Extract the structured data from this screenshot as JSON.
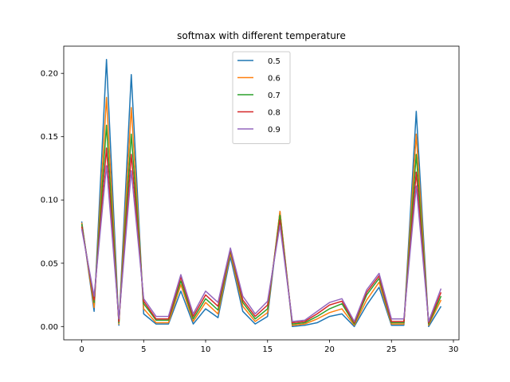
{
  "chart_data": {
    "type": "line",
    "title": "softmax with different temperature",
    "xlabel": "",
    "ylabel": "",
    "xlim": [
      -1.45,
      30.45
    ],
    "ylim": [
      -0.0105,
      0.2215
    ],
    "xticks": [
      0,
      5,
      10,
      15,
      20,
      25,
      30
    ],
    "xtick_labels": [
      "0",
      "5",
      "10",
      "15",
      "20",
      "25",
      "30"
    ],
    "yticks": [
      0.0,
      0.05,
      0.1,
      0.15,
      0.2
    ],
    "ytick_labels": [
      "0.00",
      "0.05",
      "0.10",
      "0.15",
      "0.20"
    ],
    "grid": false,
    "legend": "top-center",
    "x": [
      0,
      1,
      2,
      3,
      4,
      5,
      6,
      7,
      8,
      9,
      10,
      11,
      12,
      13,
      14,
      15,
      16,
      17,
      18,
      19,
      20,
      21,
      22,
      23,
      24,
      25,
      26,
      27,
      28,
      29
    ],
    "series": [
      {
        "name": "0.5",
        "color": "#1f77b4",
        "values": [
          0.083,
          0.012,
          0.211,
          0.001,
          0.199,
          0.01,
          0.002,
          0.002,
          0.028,
          0.002,
          0.014,
          0.007,
          0.055,
          0.012,
          0.002,
          0.008,
          0.091,
          0.0,
          0.001,
          0.003,
          0.008,
          0.01,
          0.0,
          0.017,
          0.031,
          0.001,
          0.001,
          0.17,
          0.0,
          0.016
        ]
      },
      {
        "name": "0.6",
        "color": "#ff7f0e",
        "values": [
          0.082,
          0.015,
          0.181,
          0.002,
          0.173,
          0.014,
          0.003,
          0.003,
          0.033,
          0.004,
          0.019,
          0.01,
          0.058,
          0.016,
          0.004,
          0.011,
          0.091,
          0.001,
          0.002,
          0.006,
          0.011,
          0.014,
          0.001,
          0.021,
          0.035,
          0.002,
          0.002,
          0.152,
          0.001,
          0.021
        ]
      },
      {
        "name": "0.7",
        "color": "#2ca02c",
        "values": [
          0.081,
          0.019,
          0.159,
          0.003,
          0.152,
          0.018,
          0.005,
          0.005,
          0.036,
          0.006,
          0.022,
          0.013,
          0.06,
          0.019,
          0.006,
          0.014,
          0.088,
          0.002,
          0.003,
          0.008,
          0.014,
          0.018,
          0.002,
          0.025,
          0.038,
          0.003,
          0.003,
          0.136,
          0.002,
          0.024
        ]
      },
      {
        "name": "0.8",
        "color": "#d62728",
        "values": [
          0.079,
          0.021,
          0.141,
          0.004,
          0.136,
          0.02,
          0.006,
          0.006,
          0.039,
          0.008,
          0.025,
          0.016,
          0.061,
          0.021,
          0.008,
          0.017,
          0.084,
          0.003,
          0.004,
          0.01,
          0.017,
          0.02,
          0.003,
          0.027,
          0.04,
          0.004,
          0.004,
          0.122,
          0.003,
          0.027
        ]
      },
      {
        "name": "0.9",
        "color": "#9467bd",
        "values": [
          0.077,
          0.024,
          0.127,
          0.006,
          0.123,
          0.022,
          0.008,
          0.008,
          0.041,
          0.01,
          0.028,
          0.019,
          0.062,
          0.024,
          0.01,
          0.02,
          0.08,
          0.004,
          0.005,
          0.012,
          0.019,
          0.022,
          0.004,
          0.029,
          0.042,
          0.006,
          0.006,
          0.111,
          0.004,
          0.03
        ]
      }
    ]
  }
}
